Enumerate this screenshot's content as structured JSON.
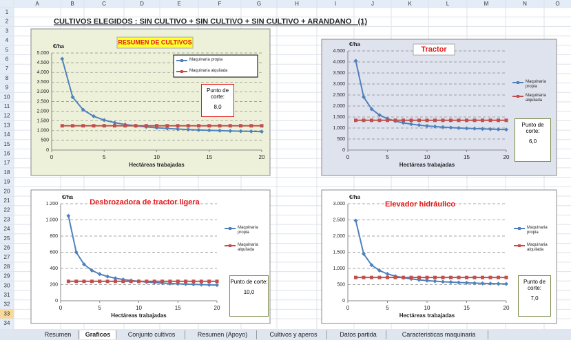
{
  "sheet": {
    "title": "CULTIVOS ELEGIDOS : SIN CULTIVO + SIN CULTIVO + SIN CULTIVO + ARANDANO   (1)",
    "columns": [
      "A",
      "B",
      "C",
      "D",
      "E",
      "F",
      "G",
      "H",
      "I",
      "J",
      "K",
      "L",
      "M",
      "N",
      "O"
    ],
    "rows": [
      1,
      2,
      3,
      4,
      5,
      6,
      7,
      8,
      9,
      10,
      11,
      12,
      13,
      14,
      15,
      16,
      17,
      18,
      19,
      20,
      21,
      22,
      23,
      24,
      25,
      26,
      27,
      28,
      29,
      30,
      31,
      32,
      33,
      34
    ],
    "tabs": [
      "Resumen",
      "Graficos",
      "Conjunto cultivos",
      "Resumen (Apoyo)",
      "Cultivos y aperos",
      "Datos partida",
      "Caracteristicas maquinaria"
    ]
  },
  "chart_data": [
    {
      "type": "line",
      "title": "RESUMEN DE CULTIVOS",
      "x_label": "Hectáreas trabajadas",
      "y_label": "€/ha",
      "annotation": "Punto de corte:",
      "annotation_value": "8,0",
      "legend": "inside",
      "grid": true,
      "x": [
        1,
        2,
        3,
        4,
        5,
        6,
        7,
        8,
        9,
        10,
        11,
        12,
        13,
        14,
        15,
        16,
        17,
        18,
        19,
        20
      ],
      "xlim": [
        0,
        20
      ],
      "xticks": [
        0,
        5,
        10,
        15,
        20
      ],
      "ylim": [
        0,
        5000
      ],
      "yticks": [
        0,
        500,
        {
          "value": 1000,
          "label": "1.000"
        },
        {
          "value": 1500,
          "label": "1.500"
        },
        {
          "value": 2000,
          "label": "2.000"
        },
        {
          "value": 2500,
          "label": "2.500"
        },
        {
          "value": 3000,
          "label": "3.000"
        },
        {
          "value": 3500,
          "label": "3.500"
        },
        {
          "value": 4000,
          "label": "4.000"
        },
        {
          "value": 4500,
          "label": "4.500"
        },
        {
          "value": 5000,
          "label": "5.000"
        }
      ],
      "series": [
        {
          "name": "Maquinaria propia",
          "color": "#4f81bd",
          "values": [
            4700,
            2727,
            2069,
            1740,
            1542,
            1411,
            1317,
            1246,
            1192,
            1148,
            1112,
            1082,
            1057,
            1035,
            1016,
            1000,
            985,
            972,
            961,
            950
          ]
        },
        {
          "name": "Maquinaria alquilada",
          "color": "#c0504d",
          "values": [
            1250,
            1250,
            1250,
            1250,
            1250,
            1250,
            1250,
            1250,
            1250,
            1250,
            1250,
            1250,
            1250,
            1250,
            1250,
            1250,
            1250,
            1250,
            1250,
            1250
          ]
        }
      ]
    },
    {
      "type": "line",
      "title": "Tractor",
      "x_label": "Hectáreas trabajadas",
      "y_label": "€/ha",
      "annotation": "Punto de corte:",
      "annotation_value": "6,0",
      "legend": "right",
      "grid": true,
      "x": [
        1,
        2,
        3,
        4,
        5,
        6,
        7,
        8,
        9,
        10,
        11,
        12,
        13,
        14,
        15,
        16,
        17,
        18,
        19,
        20
      ],
      "xlim": [
        0,
        20
      ],
      "xticks": [
        0,
        5,
        10,
        15,
        20
      ],
      "ylim": [
        0,
        4500
      ],
      "yticks": [
        0,
        500,
        {
          "value": 1000,
          "label": "1.000"
        },
        {
          "value": 1500,
          "label": "1.500"
        },
        {
          "value": 2000,
          "label": "2.000"
        },
        {
          "value": 2500,
          "label": "2.500"
        },
        {
          "value": 3000,
          "label": "3.000"
        },
        {
          "value": 3500,
          "label": "3.500"
        },
        {
          "value": 4000,
          "label": "4.000"
        },
        {
          "value": 4500,
          "label": "4.500"
        }
      ],
      "series": [
        {
          "name": "Maquinaria propia",
          "color": "#4f81bd",
          "values": [
            4050,
            2408,
            1861,
            1587,
            1423,
            1313,
            1235,
            1177,
            1131,
            1094,
            1065,
            1040,
            1019,
            1001,
            985,
            971,
            959,
            948,
            939,
            930
          ]
        },
        {
          "name": "Maquinaria alquilada",
          "color": "#c0504d",
          "values": [
            1350,
            1350,
            1350,
            1350,
            1350,
            1350,
            1350,
            1350,
            1350,
            1350,
            1350,
            1350,
            1350,
            1350,
            1350,
            1350,
            1350,
            1350,
            1350,
            1350
          ]
        }
      ]
    },
    {
      "type": "line",
      "title": "Desbrozadora de tractor ligera",
      "x_label": "Hectáreas trabajadas",
      "y_label": "€/ha",
      "annotation": "Punto de corte:",
      "annotation_value": "10,0",
      "legend": "right",
      "grid": true,
      "x": [
        1,
        2,
        3,
        4,
        5,
        6,
        7,
        8,
        9,
        10,
        11,
        12,
        13,
        14,
        15,
        16,
        17,
        18,
        19,
        20
      ],
      "xlim": [
        0,
        20
      ],
      "xticks": [
        0,
        5,
        10,
        15,
        20
      ],
      "ylim": [
        0,
        1200
      ],
      "yticks": [
        0,
        200,
        400,
        600,
        800,
        {
          "value": 1000,
          "label": "1.000"
        },
        {
          "value": 1200,
          "label": "1.200"
        }
      ],
      "series": [
        {
          "name": "Maquinaria propia",
          "color": "#4f81bd",
          "values": [
            1050,
            600,
            450,
            375,
            330,
            300,
            279,
            263,
            250,
            240,
            232,
            225,
            219,
            214,
            210,
            206,
            203,
            200,
            197,
            195
          ]
        },
        {
          "name": "Maquinaria alquilada",
          "color": "#c0504d",
          "values": [
            240,
            240,
            240,
            240,
            240,
            240,
            240,
            240,
            240,
            240,
            240,
            240,
            240,
            240,
            240,
            240,
            240,
            240,
            240,
            240
          ]
        }
      ]
    },
    {
      "type": "line",
      "title": "Elevador hidráulico",
      "x_label": "Hectáreas trabajadas",
      "y_label": "€/ha",
      "annotation": "Punto de corte:",
      "annotation_value": "7,0",
      "legend": "right",
      "grid": true,
      "x": [
        1,
        2,
        3,
        4,
        5,
        6,
        7,
        8,
        9,
        10,
        11,
        12,
        13,
        14,
        15,
        16,
        17,
        18,
        19,
        20
      ],
      "xlim": [
        0,
        20
      ],
      "xticks": [
        0,
        5,
        10,
        15,
        20
      ],
      "ylim": [
        0,
        3000
      ],
      "yticks": [
        0,
        500,
        {
          "value": 1000,
          "label": "1.000"
        },
        {
          "value": 1500,
          "label": "1.500"
        },
        {
          "value": 2000,
          "label": "2.000"
        },
        {
          "value": 2500,
          "label": "2.500"
        },
        {
          "value": 3000,
          "label": "3.000"
        }
      ],
      "series": [
        {
          "name": "Maquinaria propia",
          "color": "#4f81bd",
          "values": [
            2480,
            1449,
            1105,
            933,
            830,
            761,
            712,
            675,
            646,
            623,
            605,
            589,
            576,
            564,
            555,
            546,
            538,
            532,
            526,
            520
          ]
        },
        {
          "name": "Maquinaria alquilada",
          "color": "#c0504d",
          "values": [
            720,
            720,
            720,
            720,
            720,
            720,
            720,
            720,
            720,
            720,
            720,
            720,
            720,
            720,
            720,
            720,
            720,
            720,
            720,
            720
          ]
        }
      ]
    }
  ]
}
